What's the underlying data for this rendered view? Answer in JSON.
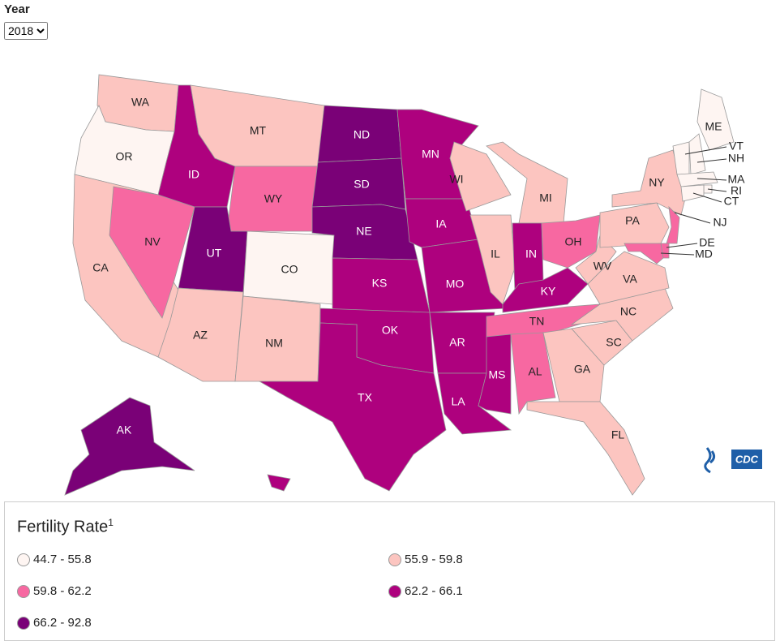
{
  "header": {
    "label": "Year",
    "selected": "2018"
  },
  "legend": {
    "title": "Fertility Rate",
    "footnote": "1",
    "classes": [
      {
        "label": "44.7 - 55.8",
        "color": "#fef5f2"
      },
      {
        "label": "55.9 - 59.8",
        "color": "#fcc5c0"
      },
      {
        "label": "59.8 - 62.2",
        "color": "#f768a1"
      },
      {
        "label": "62.2 - 66.1",
        "color": "#ae017e"
      },
      {
        "label": "66.2 - 92.8",
        "color": "#7a0177"
      }
    ]
  },
  "logo": "CDC",
  "map": {
    "states": [
      {
        "abbr": "WA",
        "class": 1
      },
      {
        "abbr": "OR",
        "class": 0
      },
      {
        "abbr": "CA",
        "class": 1
      },
      {
        "abbr": "NV",
        "class": 2
      },
      {
        "abbr": "ID",
        "class": 3
      },
      {
        "abbr": "MT",
        "class": 1
      },
      {
        "abbr": "WY",
        "class": 2
      },
      {
        "abbr": "UT",
        "class": 4
      },
      {
        "abbr": "CO",
        "class": 0
      },
      {
        "abbr": "AZ",
        "class": 1
      },
      {
        "abbr": "NM",
        "class": 1
      },
      {
        "abbr": "ND",
        "class": 4
      },
      {
        "abbr": "SD",
        "class": 4
      },
      {
        "abbr": "NE",
        "class": 4
      },
      {
        "abbr": "KS",
        "class": 3
      },
      {
        "abbr": "OK",
        "class": 3
      },
      {
        "abbr": "TX",
        "class": 3
      },
      {
        "abbr": "MN",
        "class": 3
      },
      {
        "abbr": "IA",
        "class": 3
      },
      {
        "abbr": "MO",
        "class": 3
      },
      {
        "abbr": "AR",
        "class": 3
      },
      {
        "abbr": "LA",
        "class": 3
      },
      {
        "abbr": "WI",
        "class": 1
      },
      {
        "abbr": "IL",
        "class": 1
      },
      {
        "abbr": "MI",
        "class": 1
      },
      {
        "abbr": "IN",
        "class": 3
      },
      {
        "abbr": "OH",
        "class": 2
      },
      {
        "abbr": "KY",
        "class": 3
      },
      {
        "abbr": "TN",
        "class": 2
      },
      {
        "abbr": "MS",
        "class": 3
      },
      {
        "abbr": "AL",
        "class": 2
      },
      {
        "abbr": "GA",
        "class": 1
      },
      {
        "abbr": "FL",
        "class": 1
      },
      {
        "abbr": "SC",
        "class": 1
      },
      {
        "abbr": "NC",
        "class": 1
      },
      {
        "abbr": "VA",
        "class": 1
      },
      {
        "abbr": "WV",
        "class": 1
      },
      {
        "abbr": "PA",
        "class": 1
      },
      {
        "abbr": "NY",
        "class": 1
      },
      {
        "abbr": "ME",
        "class": 0
      },
      {
        "abbr": "VT",
        "class": 0
      },
      {
        "abbr": "NH",
        "class": 0
      },
      {
        "abbr": "MA",
        "class": 0
      },
      {
        "abbr": "RI",
        "class": 0
      },
      {
        "abbr": "CT",
        "class": 0
      },
      {
        "abbr": "NJ",
        "class": 2
      },
      {
        "abbr": "DE",
        "class": 2
      },
      {
        "abbr": "MD",
        "class": 2
      },
      {
        "abbr": "AK",
        "class": 4
      },
      {
        "abbr": "HI",
        "class": 3
      }
    ]
  }
}
